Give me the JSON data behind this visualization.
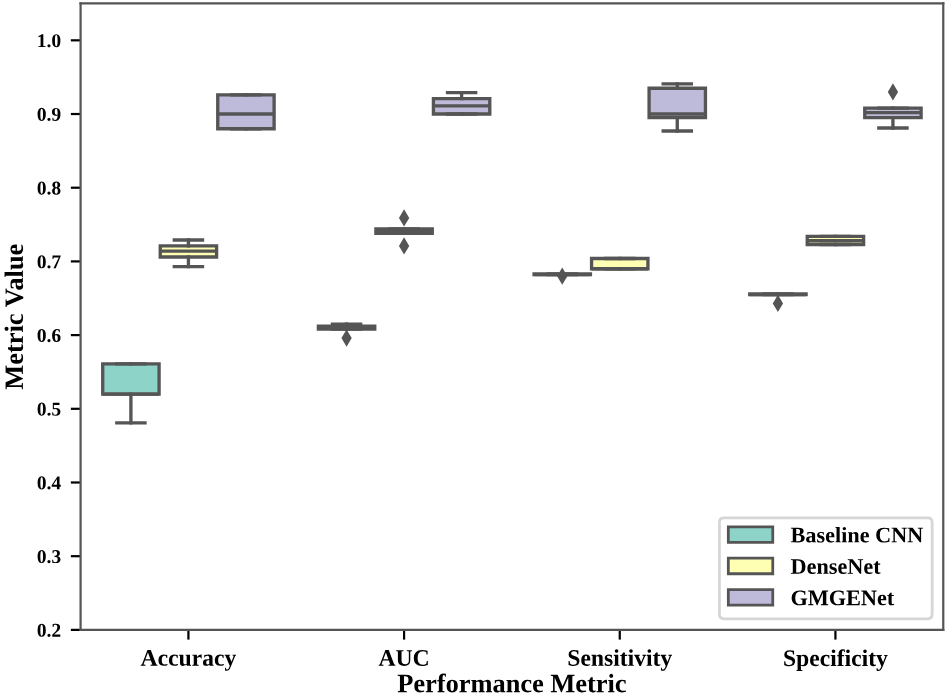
{
  "chart_data": {
    "type": "box",
    "xlabel": "Performance Metric",
    "ylabel": "Metric Value",
    "categories": [
      "Accuracy",
      "AUC",
      "Sensitivity",
      "Specificity"
    ],
    "series": [
      {
        "name": "Baseline CNN",
        "color": "#8dd3c7",
        "boxes": [
          {
            "low": 0.481,
            "q1": 0.52,
            "median": 0.52,
            "q3": 0.561,
            "high": 0.561
          },
          {
            "low": 0.608,
            "q1": 0.608,
            "median": 0.61,
            "q3": 0.612,
            "high": 0.615,
            "outliers": [
              0.596
            ]
          },
          {
            "low": 0.682,
            "q1": 0.682,
            "median": 0.682,
            "q3": 0.683,
            "high": 0.683,
            "outliers": [
              0.68
            ]
          },
          {
            "low": 0.655,
            "q1": 0.655,
            "median": 0.655,
            "q3": 0.656,
            "high": 0.656,
            "outliers": [
              0.643
            ]
          }
        ]
      },
      {
        "name": "DenseNet",
        "color": "#ffffb3",
        "boxes": [
          {
            "low": 0.693,
            "q1": 0.706,
            "median": 0.714,
            "q3": 0.721,
            "high": 0.729
          },
          {
            "low": 0.738,
            "q1": 0.738,
            "median": 0.741,
            "q3": 0.744,
            "high": 0.744,
            "outliers": [
              0.759,
              0.721
            ]
          },
          {
            "low": 0.69,
            "q1": 0.69,
            "median": 0.69,
            "q3": 0.704,
            "high": 0.704
          },
          {
            "low": 0.723,
            "q1": 0.723,
            "median": 0.728,
            "q3": 0.734,
            "high": 0.734
          }
        ]
      },
      {
        "name": "GMGENet",
        "color": "#bebada",
        "boxes": [
          {
            "low": 0.88,
            "q1": 0.88,
            "median": 0.9,
            "q3": 0.926,
            "high": 0.926
          },
          {
            "low": 0.9,
            "q1": 0.9,
            "median": 0.911,
            "q3": 0.921,
            "high": 0.929
          },
          {
            "low": 0.877,
            "q1": 0.895,
            "median": 0.9,
            "q3": 0.935,
            "high": 0.941
          },
          {
            "low": 0.881,
            "q1": 0.895,
            "median": 0.902,
            "q3": 0.908,
            "high": 0.908,
            "outliers": [
              0.93
            ]
          }
        ]
      }
    ],
    "ylim": [
      0.2,
      1.05
    ],
    "yticks": [
      0.2,
      0.3,
      0.4,
      0.5,
      0.6,
      0.7,
      0.8,
      0.9,
      {
        "value": 1.0,
        "label": "1.0"
      }
    ],
    "grid": false,
    "legend": "bottom right"
  }
}
